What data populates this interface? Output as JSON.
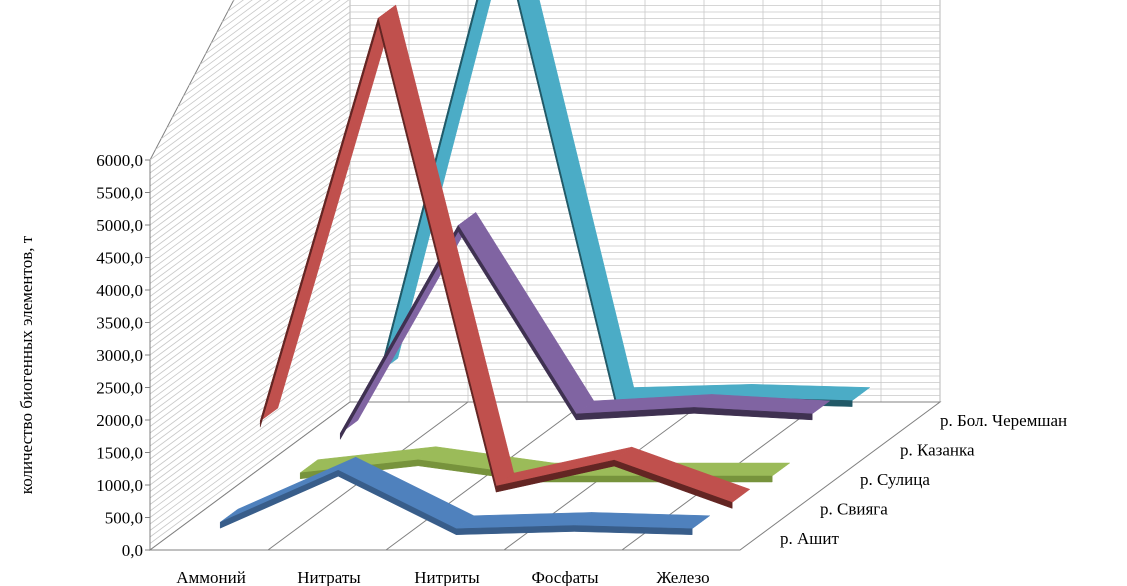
{
  "chart_data": {
    "type": "line",
    "subtype": "3d-line",
    "title": "",
    "ylabel": "количество биогенных элементов, т",
    "xlabel": "",
    "categories": [
      "Аммоний",
      "Нитраты",
      "Нитриты",
      "Фосфаты",
      "Железо"
    ],
    "ylim": [
      0,
      6000
    ],
    "y_ticks": [
      "0,0",
      "500,0",
      "1000,0",
      "1500,0",
      "2000,0",
      "2500,0",
      "3000,0",
      "3500,0",
      "4000,0",
      "4500,0",
      "5000,0",
      "5500,0",
      "6000,0"
    ],
    "grid": true,
    "series": [
      {
        "name": "р. Ашит",
        "color": "#4f81bd",
        "side": "#385d8a",
        "values": [
          300,
          1100,
          200,
          250,
          200
        ]
      },
      {
        "name": "р. Свияга",
        "color": "#c0504d",
        "side": "#632523",
        "values": [
          1400,
          7600,
          400,
          800,
          150
        ]
      },
      {
        "name": "р. Сулица",
        "color": "#9bbb59",
        "side": "#77933c",
        "values": [
          150,
          350,
          100,
          100,
          100
        ]
      },
      {
        "name": "р. Казанка",
        "color": "#8064a2",
        "side": "#3f3151",
        "values": [
          300,
          3500,
          600,
          700,
          600
        ]
      },
      {
        "name": "р. Бол. Черемшан",
        "color": "#4bacc6",
        "side": "#215967",
        "values": [
          800,
          7800,
          350,
          400,
          350
        ]
      }
    ]
  }
}
